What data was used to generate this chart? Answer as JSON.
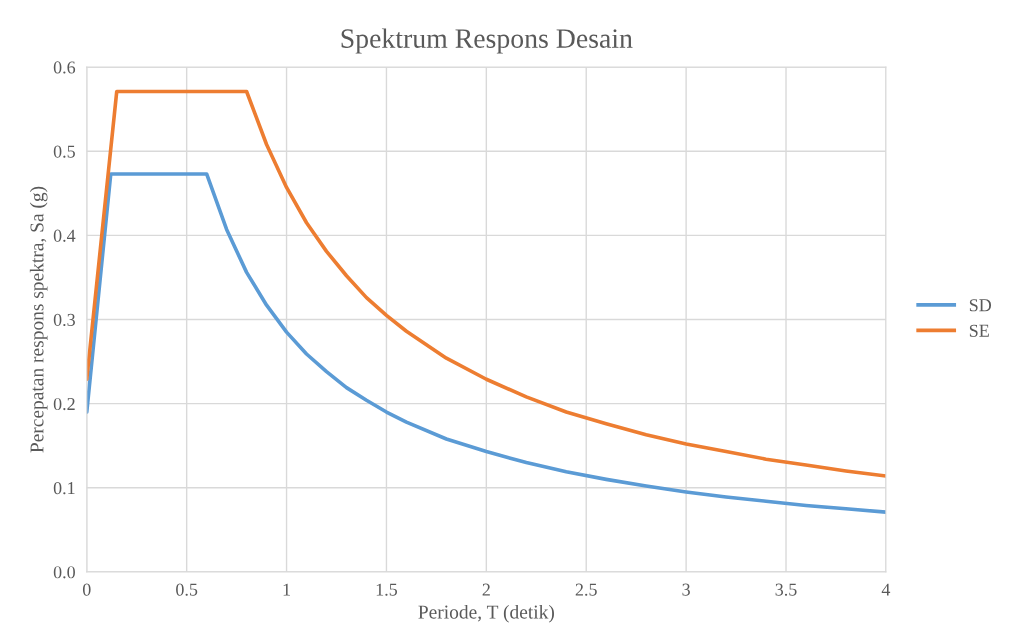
{
  "chart_data": {
    "type": "line",
    "title": "Spektrum Respons Desain",
    "xlabel": "Periode, T (detik)",
    "ylabel": "Percepatan respons spektra, Sa (g)",
    "xlim": [
      0,
      4
    ],
    "xticks": [
      0,
      0.5,
      1,
      1.5,
      2,
      2.5,
      3,
      3.5,
      4
    ],
    "ylim": [
      0,
      0.6
    ],
    "yticks": [
      {
        "value": 0,
        "label": "0.0"
      },
      0.1,
      0.2,
      0.3,
      0.4,
      0.5,
      0.6
    ],
    "grid": true,
    "legend": "right",
    "marker": "none",
    "line_style": "solid",
    "series": [
      {
        "name": "SD",
        "color": "#5b9bd5",
        "x": [
          0,
          0.12,
          0.6,
          0.7,
          0.8,
          0.9,
          1.0,
          1.1,
          1.2,
          1.3,
          1.4,
          1.5,
          1.6,
          1.8,
          2.0,
          2.2,
          2.4,
          2.6,
          2.8,
          3.0,
          3.2,
          3.4,
          3.6,
          3.8,
          4.0
        ],
        "values": [
          0.19,
          0.473,
          0.473,
          0.407,
          0.356,
          0.317,
          0.285,
          0.259,
          0.238,
          0.219,
          0.204,
          0.19,
          0.178,
          0.158,
          0.143,
          0.13,
          0.119,
          0.11,
          0.102,
          0.095,
          0.089,
          0.084,
          0.079,
          0.075,
          0.071
        ]
      },
      {
        "name": "SE",
        "color": "#ed7d31",
        "x": [
          0,
          0.15,
          0.8,
          0.9,
          1.0,
          1.1,
          1.2,
          1.3,
          1.4,
          1.5,
          1.6,
          1.8,
          2.0,
          2.2,
          2.4,
          2.6,
          2.8,
          3.0,
          3.2,
          3.4,
          3.6,
          3.8,
          4.0
        ],
        "values": [
          0.229,
          0.571,
          0.571,
          0.508,
          0.457,
          0.415,
          0.381,
          0.352,
          0.326,
          0.305,
          0.286,
          0.254,
          0.229,
          0.208,
          0.19,
          0.176,
          0.163,
          0.152,
          0.143,
          0.134,
          0.127,
          0.12,
          0.114
        ]
      }
    ]
  }
}
